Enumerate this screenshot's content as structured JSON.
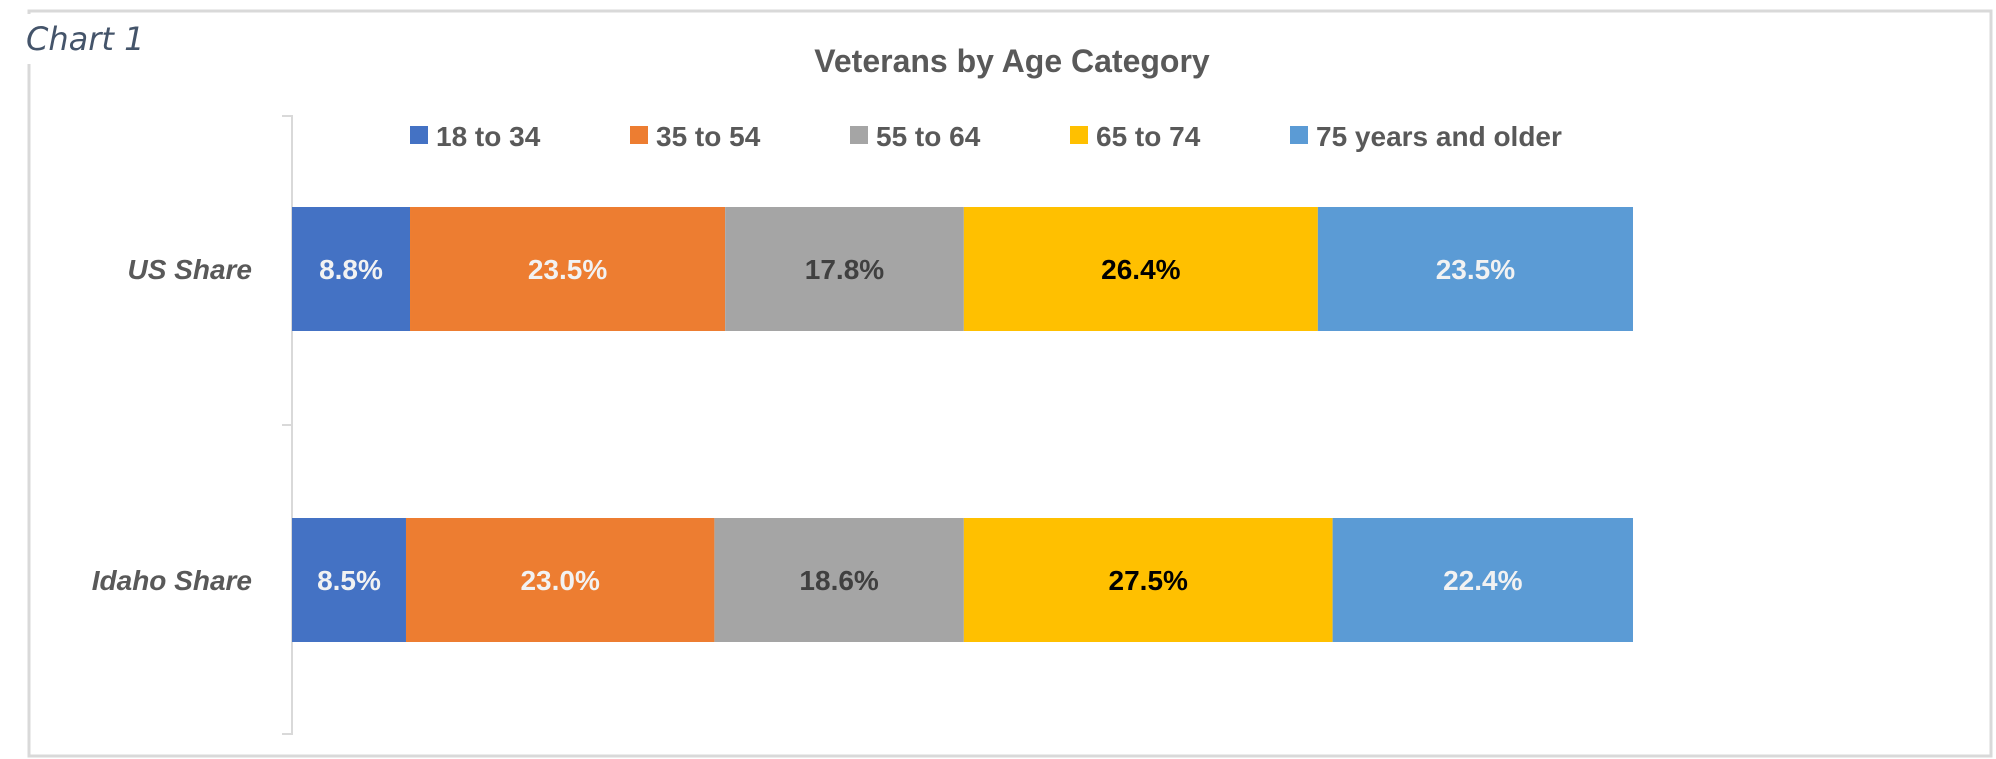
{
  "caption": "Chart 1",
  "chart_data": {
    "type": "bar",
    "orientation": "horizontal",
    "stacked": "100%",
    "title": "Veterans by Age Category",
    "categories": [
      "US Share",
      "Idaho Share"
    ],
    "series": [
      {
        "name": "18 to 34",
        "color": "#4472c4",
        "label_color": "#f2f2f2",
        "values": [
          8.8,
          8.5
        ],
        "labels": [
          "8.8%",
          "8.5%"
        ]
      },
      {
        "name": "35 to 54",
        "color": "#ed7d31",
        "label_color": "#f2f2f2",
        "values": [
          23.5,
          23.0
        ],
        "labels": [
          "23.5%",
          "23.0%"
        ]
      },
      {
        "name": "55 to 64",
        "color": "#a5a5a5",
        "label_color": "#404040",
        "values": [
          17.8,
          18.6
        ],
        "labels": [
          "17.8%",
          "18.6%"
        ]
      },
      {
        "name": "65 to 74",
        "color": "#ffc000",
        "label_color": "#000000",
        "values": [
          26.4,
          27.5
        ],
        "labels": [
          "26.4%",
          "27.5%"
        ]
      },
      {
        "name": "75 years and older",
        "color": "#5b9bd5",
        "label_color": "#f2f2f2",
        "values": [
          23.5,
          22.4
        ],
        "labels": [
          "23.5%",
          "22.4%"
        ]
      }
    ],
    "xlim": [
      0,
      100
    ],
    "legend": "top",
    "grid": false,
    "x_axis_visible": false
  }
}
